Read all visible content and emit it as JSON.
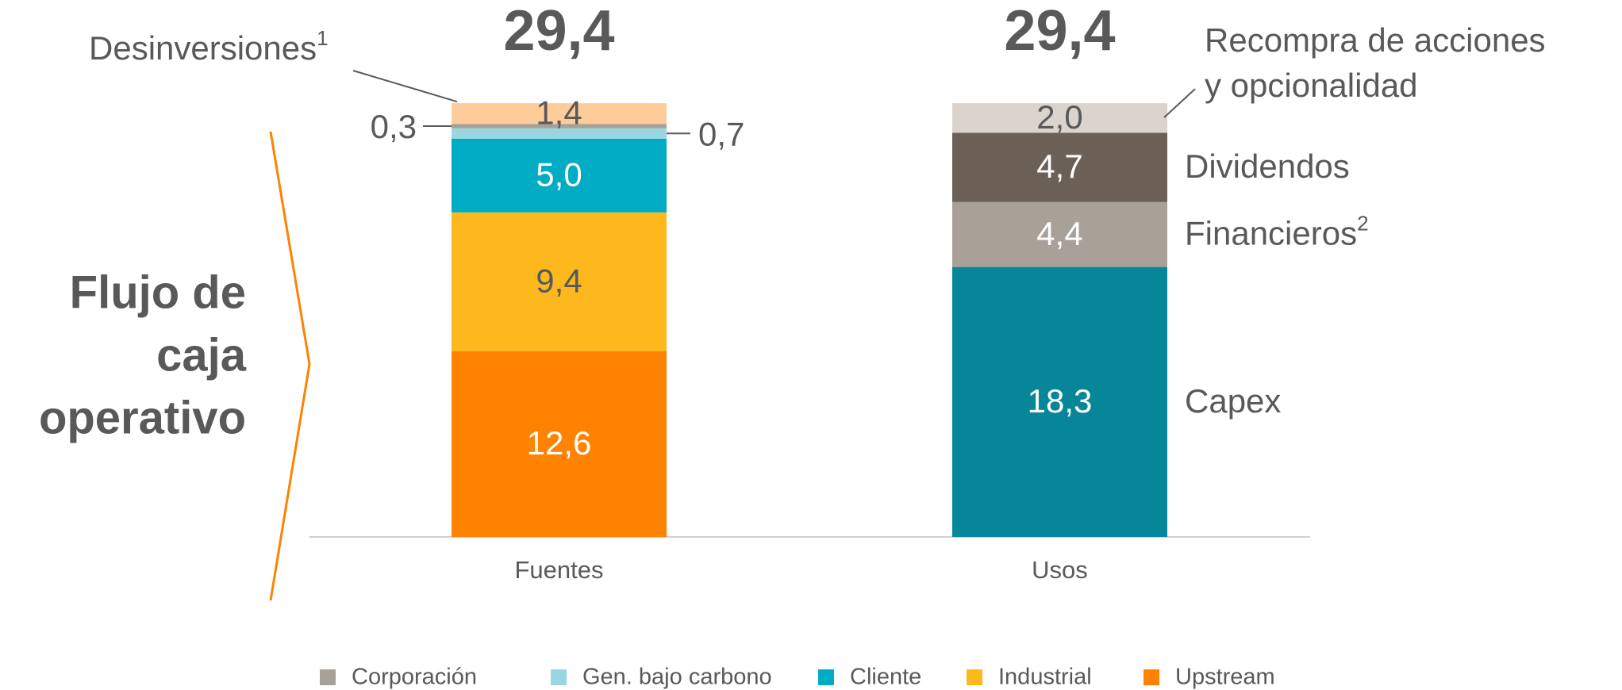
{
  "chart_data": {
    "type": "bar",
    "stacked": true,
    "categories": [
      "Fuentes",
      "Usos"
    ],
    "ylim": [
      0,
      30
    ],
    "totals": [
      29.4,
      29.4
    ],
    "total_labels": [
      "29,4",
      "29,4"
    ],
    "annotation": {
      "lines": [
        "Flujo de",
        "caja",
        "operativo"
      ],
      "color": "#ff8200"
    },
    "series": [
      {
        "name": "Upstream",
        "color": "#ff8200",
        "values": [
          12.6,
          null
        ],
        "value_labels": [
          "12,6",
          null
        ],
        "legend": true,
        "label_position": "inside",
        "label_color": "#ffffff"
      },
      {
        "name": "Industrial",
        "color": "#fdb81e",
        "values": [
          9.4,
          null
        ],
        "value_labels": [
          "9,4",
          null
        ],
        "legend": true,
        "label_position": "inside",
        "label_color": "#595959"
      },
      {
        "name": "Cliente",
        "color": "#00abc4",
        "values": [
          5.0,
          null
        ],
        "value_labels": [
          "5,0",
          null
        ],
        "legend": true,
        "label_position": "inside",
        "label_color": "#ffffff"
      },
      {
        "name": "Gen. bajo carbono",
        "color": "#9ad6df",
        "values": [
          0.7,
          null
        ],
        "value_labels": [
          "0,7",
          null
        ],
        "legend": true,
        "label_position": "right",
        "label_color": "#595959"
      },
      {
        "name": "Corporación",
        "color": "#a8a199",
        "values": [
          0.3,
          null
        ],
        "value_labels": [
          "0,3",
          null
        ],
        "legend": true,
        "label_position": "left",
        "label_color": "#595959"
      },
      {
        "name": "Desinversiones",
        "footnote": "1",
        "color": "#ffcc99",
        "values": [
          1.4,
          null
        ],
        "value_labels": [
          "1,4",
          null
        ],
        "legend": false,
        "name_position": "callout",
        "label_position": "inside",
        "label_color": "#595959"
      },
      {
        "name": "Capex",
        "color": "#07869a",
        "values": [
          null,
          18.3
        ],
        "value_labels": [
          null,
          "18,3"
        ],
        "legend": false,
        "name_position": "right",
        "label_position": "inside",
        "label_color": "#ffffff"
      },
      {
        "name": "Financieros",
        "footnote": "2",
        "color": "#a9a097",
        "values": [
          null,
          4.4
        ],
        "value_labels": [
          null,
          "4,4"
        ],
        "legend": false,
        "name_position": "right",
        "label_position": "inside",
        "label_color": "#ffffff"
      },
      {
        "name": "Dividendos",
        "color": "#6b5f56",
        "values": [
          null,
          4.7
        ],
        "value_labels": [
          null,
          "4,7"
        ],
        "legend": false,
        "name_position": "right",
        "label_position": "inside",
        "label_color": "#ffffff"
      },
      {
        "name": [
          "Recompra de acciones",
          "y opcionalidad"
        ],
        "color": "#dad4cc",
        "values": [
          null,
          2.0
        ],
        "value_labels": [
          null,
          "2,0"
        ],
        "legend": false,
        "name_position": "callout",
        "label_position": "inside",
        "label_color": "#595959"
      }
    ]
  }
}
